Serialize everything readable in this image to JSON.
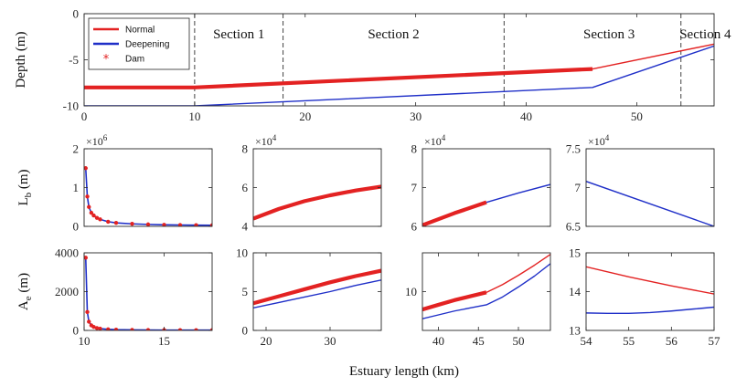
{
  "colors": {
    "normal": "#e32222",
    "deepening": "#1f2fc8",
    "dam": "#e32222"
  },
  "chart_data": [
    {
      "id": "depth",
      "type": "line",
      "ylabel": "Depth (m)",
      "xlim": [
        0,
        57
      ],
      "ylim": [
        -10,
        0
      ],
      "xticks": [
        0,
        10,
        20,
        30,
        40,
        50
      ],
      "yticks": [
        -10,
        -5,
        0
      ],
      "legend": {
        "position": "top-left",
        "entries": [
          "Normal",
          "Deepening",
          "Dam"
        ]
      },
      "sections": [
        {
          "label": "Section 1",
          "x": 14
        },
        {
          "label": "Section 2",
          "x": 28
        },
        {
          "label": "Section 3",
          "x": 47.5
        },
        {
          "label": "Section 4",
          "x": 56.2
        }
      ],
      "section_boundaries": [
        10,
        18,
        38,
        54
      ],
      "series": [
        {
          "name": "Normal",
          "style": "thin",
          "x": [
            0,
            10,
            46,
            57
          ],
          "y": [
            -8,
            -8,
            -6,
            -3.3
          ]
        },
        {
          "name": "Dam",
          "style": "thick",
          "x": [
            0,
            10,
            46
          ],
          "y": [
            -8,
            -8,
            -6
          ]
        },
        {
          "name": "Deepening",
          "style": "thin",
          "x": [
            0,
            10,
            46,
            57
          ],
          "y": [
            -10,
            -10,
            -8,
            -3.5
          ]
        }
      ]
    },
    {
      "id": "lb1",
      "type": "line",
      "ylabel": "L_b (m)",
      "exponent": "×10^6",
      "xlim": [
        10,
        18
      ],
      "ylim": [
        0,
        2
      ],
      "xticks": [],
      "yticks": [
        0,
        1,
        2
      ],
      "series": [
        {
          "name": "Normal",
          "style": "markers",
          "x": [
            10.1,
            10.2,
            10.3,
            10.45,
            10.6,
            10.8,
            11,
            11.5,
            12,
            13,
            14,
            15,
            16,
            17,
            18
          ],
          "y": [
            1.5,
            0.77,
            0.5,
            0.35,
            0.28,
            0.22,
            0.18,
            0.12,
            0.09,
            0.065,
            0.05,
            0.04,
            0.035,
            0.03,
            0.028
          ]
        }
      ]
    },
    {
      "id": "lb2",
      "type": "line",
      "exponent": "×10^4",
      "xlim": [
        18,
        38
      ],
      "ylim": [
        4,
        8
      ],
      "xticks": [],
      "yticks": [
        4,
        6,
        8
      ],
      "series": [
        {
          "name": "Normal",
          "style": "thick",
          "x": [
            18,
            22,
            26,
            30,
            34,
            38
          ],
          "y": [
            4.4,
            4.9,
            5.3,
            5.6,
            5.85,
            6.05
          ]
        }
      ]
    },
    {
      "id": "lb3",
      "type": "line",
      "exponent": "×10^4",
      "xlim": [
        38,
        54
      ],
      "ylim": [
        6,
        8
      ],
      "xticks": [],
      "yticks": [
        6,
        7,
        8
      ],
      "series": [
        {
          "name": "Normal",
          "style": "thick",
          "x": [
            38,
            42,
            46
          ],
          "y": [
            6.03,
            6.34,
            6.62
          ]
        },
        {
          "name": "Deepening",
          "style": "thin",
          "x": [
            46,
            50,
            54
          ],
          "y": [
            6.62,
            6.86,
            7.08
          ]
        }
      ]
    },
    {
      "id": "lb4",
      "type": "line",
      "exponent": "×10^4",
      "xlim": [
        54,
        57
      ],
      "ylim": [
        6.5,
        7.5
      ],
      "xticks": [],
      "yticks": [
        6.5,
        7,
        7.5
      ],
      "series": [
        {
          "name": "Deepening",
          "style": "thin",
          "x": [
            54,
            57
          ],
          "y": [
            7.08,
            6.5
          ]
        }
      ]
    },
    {
      "id": "ae1",
      "type": "line",
      "ylabel": "A_e (m)",
      "xlim": [
        10,
        18
      ],
      "ylim": [
        0,
        4000
      ],
      "xticks": [
        10,
        15
      ],
      "yticks": [
        0,
        2000,
        4000
      ],
      "series": [
        {
          "name": "Normal",
          "style": "markers",
          "x": [
            10.1,
            10.2,
            10.3,
            10.45,
            10.6,
            10.8,
            11,
            11.5,
            12,
            13,
            14,
            15,
            16,
            17,
            18
          ],
          "y": [
            3750,
            950,
            450,
            260,
            180,
            120,
            90,
            55,
            40,
            28,
            22,
            18,
            16,
            15,
            14
          ]
        }
      ]
    },
    {
      "id": "ae2",
      "type": "line",
      "xlim": [
        18,
        38
      ],
      "ylim": [
        0,
        10
      ],
      "xticks": [
        20,
        30
      ],
      "yticks": [
        0,
        5,
        10
      ],
      "series": [
        {
          "name": "Normal",
          "style": "thick",
          "x": [
            18,
            22,
            26,
            30,
            34,
            38
          ],
          "y": [
            3.5,
            4.4,
            5.3,
            6.2,
            7.0,
            7.7
          ]
        },
        {
          "name": "Deepening",
          "style": "thin",
          "x": [
            18,
            22,
            26,
            30,
            34,
            38
          ],
          "y": [
            2.9,
            3.6,
            4.3,
            5.0,
            5.8,
            6.5
          ]
        }
      ]
    },
    {
      "id": "ae3",
      "type": "line",
      "xlim": [
        38,
        54
      ],
      "ylim": [
        5,
        15
      ],
      "xticks": [
        40,
        45,
        50
      ],
      "yticks": [
        10
      ],
      "series": [
        {
          "name": "Normal",
          "style": "thick",
          "x": [
            38,
            40,
            42,
            44,
            46
          ],
          "y": [
            7.7,
            8.3,
            8.9,
            9.4,
            9.9
          ]
        },
        {
          "name": "Normal",
          "style": "thin",
          "x": [
            46,
            48,
            50,
            52,
            54
          ],
          "y": [
            9.9,
            10.9,
            12.1,
            13.4,
            14.8
          ]
        },
        {
          "name": "Deepening",
          "style": "thin",
          "x": [
            38,
            40,
            42,
            44,
            46,
            48,
            50,
            52,
            54
          ],
          "y": [
            6.5,
            7.0,
            7.5,
            7.9,
            8.3,
            9.3,
            10.6,
            12.0,
            13.6
          ]
        }
      ]
    },
    {
      "id": "ae4",
      "type": "line",
      "xlim": [
        54,
        57
      ],
      "ylim": [
        13,
        15
      ],
      "xticks": [
        54,
        55,
        56,
        57
      ],
      "yticks": [
        13,
        14,
        15
      ],
      "series": [
        {
          "name": "Normal",
          "style": "thin",
          "x": [
            54,
            55,
            56,
            57
          ],
          "y": [
            14.64,
            14.38,
            14.15,
            13.94
          ]
        },
        {
          "name": "Deepening",
          "style": "thin",
          "x": [
            54,
            54.5,
            55,
            55.5,
            56,
            56.5,
            57
          ],
          "y": [
            13.45,
            13.44,
            13.44,
            13.46,
            13.5,
            13.55,
            13.6
          ]
        }
      ]
    }
  ],
  "xlabel": "Estuary length (km)"
}
